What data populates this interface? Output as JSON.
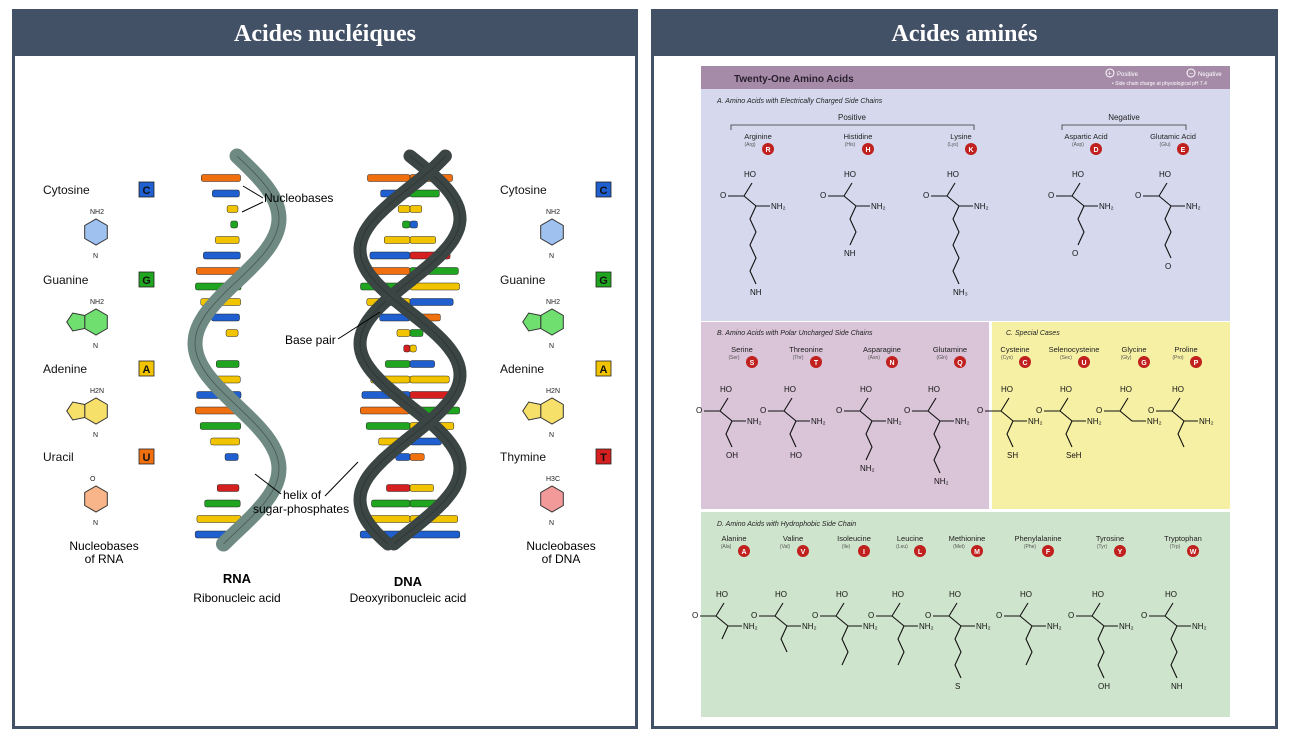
{
  "left": {
    "title": "Acides nucléiques",
    "rna_side": {
      "items": [
        {
          "name": "Cytosine",
          "letter": "C",
          "color": "#1f5fcf",
          "ring": "#9ec1ef",
          "sub": "NH2"
        },
        {
          "name": "Guanine",
          "letter": "G",
          "color": "#1fa51f",
          "ring": "#6fe06f",
          "sub": "NH2"
        },
        {
          "name": "Adenine",
          "letter": "A",
          "color": "#f2c400",
          "ring": "#f7e06a",
          "sub": "H2N"
        },
        {
          "name": "Uracil",
          "letter": "U",
          "color": "#f07010",
          "ring": "#f8b58a",
          "sub": "O"
        }
      ],
      "caption_1": "Nucleobases",
      "caption_2": "of RNA"
    },
    "dna_side": {
      "items": [
        {
          "name": "Cytosine",
          "letter": "C",
          "color": "#1f5fcf",
          "ring": "#9ec1ef",
          "sub": "NH2"
        },
        {
          "name": "Guanine",
          "letter": "G",
          "color": "#1fa51f",
          "ring": "#6fe06f",
          "sub": "NH2"
        },
        {
          "name": "Adenine",
          "letter": "A",
          "color": "#f2c400",
          "ring": "#f7e06a",
          "sub": "H2N"
        },
        {
          "name": "Thymine",
          "letter": "T",
          "color": "#d61f1f",
          "ring": "#f29a9a",
          "sub": "H3C"
        }
      ],
      "caption_1": "Nucleobases",
      "caption_2": "of DNA"
    },
    "labels": {
      "nucleobases": "Nucleobases",
      "base_pair": "Base pair",
      "helix_1": "helix of",
      "helix_2": "sugar-phosphates",
      "rna_title": "RNA",
      "rna_sub": "Ribonucleic acid",
      "dna_title": "DNA",
      "dna_sub": "Deoxyribonucleic acid"
    },
    "colors": {
      "rna_backbone": "#6f8a82",
      "dna_backbone": "#3b4543"
    }
  },
  "right": {
    "title": "Acides aminés",
    "poster_title": "Twenty-One Amino Acids",
    "legend_positive": "Positive",
    "legend_negative": "Negative",
    "legend_note": "• Side chain charge at physiological pH 7.4",
    "section_a": {
      "title": "A.   Amino Acids with Electrically Charged Side Chains",
      "positive_label": "Positive",
      "negative_label": "Negative",
      "acids": [
        {
          "name": "Arginine",
          "abbr": "(Arg)",
          "letter": "R"
        },
        {
          "name": "Histidine",
          "abbr": "(His)",
          "letter": "H"
        },
        {
          "name": "Lysine",
          "abbr": "(Lys)",
          "letter": "K"
        },
        {
          "name": "Aspartic Acid",
          "abbr": "(Asp)",
          "letter": "D"
        },
        {
          "name": "Glutamic Acid",
          "abbr": "(Glu)",
          "letter": "E"
        }
      ]
    },
    "section_b": {
      "title": "B.   Amino Acids with Polar Uncharged Side Chains",
      "acids": [
        {
          "name": "Serine",
          "abbr": "(Ser)",
          "letter": "S"
        },
        {
          "name": "Threonine",
          "abbr": "(Thr)",
          "letter": "T"
        },
        {
          "name": "Asparagine",
          "abbr": "(Asn)",
          "letter": "N"
        },
        {
          "name": "Glutamine",
          "abbr": "(Gln)",
          "letter": "Q"
        }
      ]
    },
    "section_c": {
      "title": "C.   Special Cases",
      "acids": [
        {
          "name": "Cysteine",
          "abbr": "(Cys)",
          "letter": "C"
        },
        {
          "name": "Selenocysteine",
          "abbr": "(Sec)",
          "letter": "U"
        },
        {
          "name": "Glycine",
          "abbr": "(Gly)",
          "letter": "G"
        },
        {
          "name": "Proline",
          "abbr": "(Pro)",
          "letter": "P"
        }
      ]
    },
    "section_d": {
      "title": "D.   Amino Acids with Hydrophobic Side Chain",
      "acids": [
        {
          "name": "Alanine",
          "abbr": "(Ala)",
          "letter": "A"
        },
        {
          "name": "Valine",
          "abbr": "(Val)",
          "letter": "V"
        },
        {
          "name": "Isoleucine",
          "abbr": "(Ile)",
          "letter": "I"
        },
        {
          "name": "Leucine",
          "abbr": "(Leu)",
          "letter": "L"
        },
        {
          "name": "Methionine",
          "abbr": "(Met)",
          "letter": "M"
        },
        {
          "name": "Phenylalanine",
          "abbr": "(Phe)",
          "letter": "F"
        },
        {
          "name": "Tyrosine",
          "abbr": "(Tyr)",
          "letter": "Y"
        },
        {
          "name": "Tryptophan",
          "abbr": "(Trp)",
          "letter": "W"
        }
      ]
    },
    "colors": {
      "header": "#a58ba8",
      "charged": "#d6d9ee",
      "polar": "#d9c4d8",
      "special": "#f6f0a4",
      "hydrophobic": "#cfe4cc",
      "badge": "#c0201e"
    }
  }
}
